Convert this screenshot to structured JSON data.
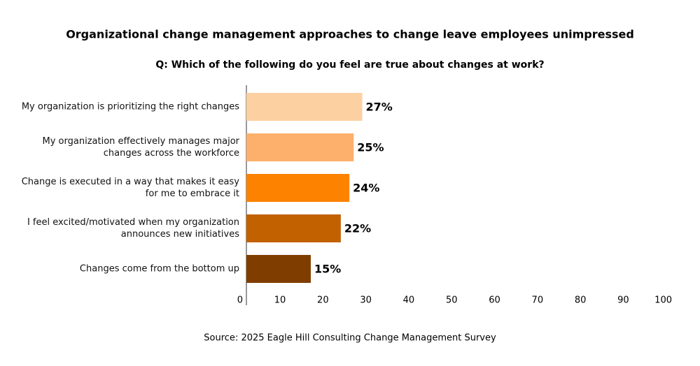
{
  "chart_data": {
    "type": "bar",
    "title": "Organizational change management approaches to change leave employees unimpressed",
    "subtitle": "Q: Which of the following do you feel are true about changes at work?",
    "categories": [
      "My organization is prioritizing the right changes",
      "My organization effectively manages major\nchanges across the workforce",
      "Change is executed in a way that makes it easy\nfor me to embrace it",
      "I feel excited/motivated when my organization\nannounces new initiatives",
      "Changes come from the bottom up"
    ],
    "values": [
      27,
      25,
      24,
      22,
      15
    ],
    "value_labels": [
      "27%",
      "25%",
      "24%",
      "22%",
      "15%"
    ],
    "colors": [
      "#fdd0a2",
      "#fdb06b",
      "#fc8200",
      "#c26100",
      "#7f3e00"
    ],
    "xlim": [
      0,
      100
    ],
    "xticks": [
      0,
      10,
      20,
      30,
      40,
      50,
      60,
      70,
      80,
      90,
      100
    ],
    "grid": false,
    "source": "Source: 2025 Eagle Hill Consulting Change Management Survey"
  }
}
